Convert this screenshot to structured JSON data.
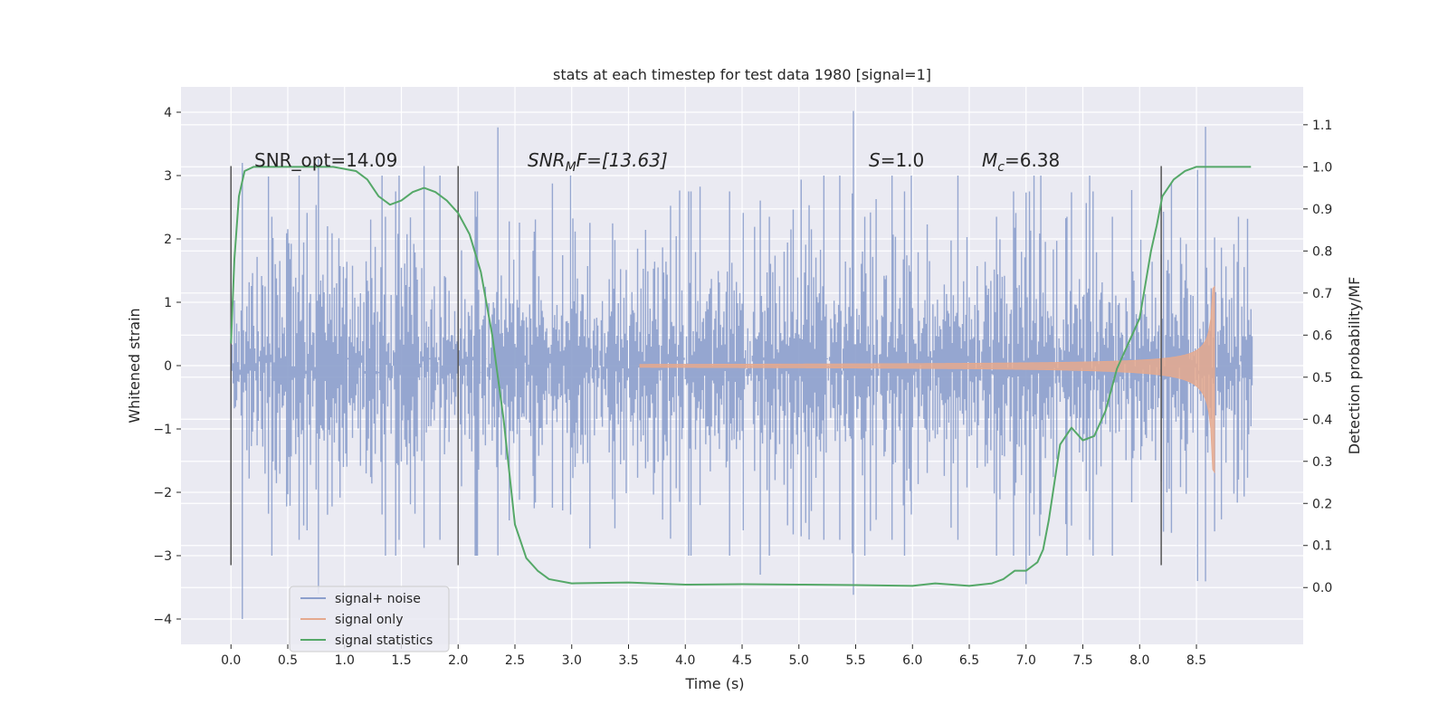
{
  "chart_data": {
    "type": "line",
    "title": "stats at each timestep for test data 1980 [signal=1]",
    "xlabel": "Time (s)",
    "ylabel": "Whitened strain",
    "ylabel_right": "Detection probability/MF",
    "xlim": [
      -0.44,
      9.44
    ],
    "ylim": [
      -4.4,
      4.4
    ],
    "ylim_right": [
      -0.135,
      1.19
    ],
    "x_ticks": [
      0.0,
      0.5,
      1.0,
      1.5,
      2.0,
      2.5,
      3.0,
      3.5,
      4.0,
      4.5,
      5.0,
      5.5,
      6.0,
      6.5,
      7.0,
      7.5,
      8.0,
      8.5
    ],
    "x_tick_labels": [
      "0.0",
      "0.5",
      "1.0",
      "1.5",
      "2.0",
      "2.5",
      "3.0",
      "3.5",
      "4.0",
      "4.5",
      "5.0",
      "5.5",
      "6.0",
      "6.5",
      "7.0",
      "7.5",
      "8.0",
      "8.5"
    ],
    "y_ticks": [
      -4,
      -3,
      -2,
      -1,
      0,
      1,
      2,
      3,
      4
    ],
    "y_tick_labels": [
      "−4",
      "−3",
      "−2",
      "−1",
      "0",
      "1",
      "2",
      "3",
      "4"
    ],
    "y_right_ticks": [
      0.0,
      0.1,
      0.2,
      0.3,
      0.4,
      0.5,
      0.6,
      0.7,
      0.8,
      0.9,
      1.0,
      1.1
    ],
    "y_right_tick_labels": [
      "0.0",
      "0.1",
      "0.2",
      "0.3",
      "0.4",
      "0.5",
      "0.6",
      "0.7",
      "0.8",
      "0.9",
      "1.0",
      "1.1"
    ],
    "grid": true,
    "legend_position": "lower-left",
    "legend": [
      {
        "label": "signal+ noise",
        "color": "#8c9fcc"
      },
      {
        "label": "signal only",
        "color": "#e5a98e"
      },
      {
        "label": "signal statistics",
        "color": "#55a868"
      }
    ],
    "annotations": {
      "snr_opt": "SNR_opt=14.09",
      "snr_mf_main": "SNR",
      "snr_mf_sub": "M",
      "snr_mf_rest": "F=[13.63]",
      "s_main": "S",
      "s_rest": "=1.0",
      "mc_main": "M",
      "mc_sub": "c",
      "mc_rest": "=6.38"
    },
    "vertical_lines_x": [
      0.0,
      2.0,
      8.19
    ],
    "vertical_lines_yrange": [
      -3.15,
      3.15
    ],
    "series": [
      {
        "name": "signal+ noise",
        "color": "#8c9fcc",
        "x_range": [
          0.0,
          8.99
        ],
        "sample_count": 900,
        "noise_seed": 1980,
        "noise_sigma": 1.0,
        "peak_extremes": [
          {
            "x": 0.1,
            "y": -4.0
          },
          {
            "x": 0.77,
            "y": -3.6
          },
          {
            "x": 5.48,
            "y": 4.02
          },
          {
            "x": 4.66,
            "y": -3.3
          },
          {
            "x": 2.35,
            "y": 3.76
          },
          {
            "x": 8.58,
            "y": 3.77
          },
          {
            "x": 8.51,
            "y": -3.4
          },
          {
            "x": 7.0,
            "y": -3.45
          },
          {
            "x": 1.7,
            "y": 3.15
          }
        ]
      },
      {
        "name": "signal only",
        "color": "#e5a98e",
        "description_model": "chirp",
        "x_range": [
          3.6,
          8.66
        ],
        "amplitude_start": 0.02,
        "amplitude_end": 1.25,
        "merger_time": 8.66
      },
      {
        "name": "signal statistics",
        "color": "#55a868",
        "axis": "right",
        "x": [
          0.0,
          0.03,
          0.07,
          0.12,
          0.2,
          0.3,
          0.5,
          0.7,
          0.9,
          1.1,
          1.2,
          1.3,
          1.4,
          1.5,
          1.6,
          1.7,
          1.8,
          1.9,
          2.0,
          2.1,
          2.2,
          2.3,
          2.4,
          2.5,
          2.6,
          2.7,
          2.8,
          3.0,
          3.5,
          4.0,
          4.5,
          5.0,
          5.5,
          6.0,
          6.2,
          6.5,
          6.7,
          6.8,
          6.9,
          7.0,
          7.1,
          7.15,
          7.2,
          7.3,
          7.4,
          7.5,
          7.6,
          7.7,
          7.8,
          7.9,
          8.0,
          8.05,
          8.1,
          8.15,
          8.2,
          8.3,
          8.4,
          8.5,
          8.7,
          8.98
        ],
        "values": [
          0.58,
          0.78,
          0.93,
          0.99,
          1.0,
          1.0,
          1.0,
          1.0,
          1.0,
          0.99,
          0.97,
          0.93,
          0.91,
          0.92,
          0.94,
          0.95,
          0.94,
          0.92,
          0.89,
          0.84,
          0.75,
          0.6,
          0.4,
          0.15,
          0.07,
          0.04,
          0.02,
          0.01,
          0.012,
          0.007,
          0.008,
          0.007,
          0.006,
          0.004,
          0.01,
          0.004,
          0.01,
          0.02,
          0.04,
          0.04,
          0.06,
          0.09,
          0.16,
          0.34,
          0.38,
          0.35,
          0.36,
          0.42,
          0.52,
          0.58,
          0.64,
          0.72,
          0.8,
          0.86,
          0.93,
          0.97,
          0.99,
          1.0,
          1.0,
          1.0
        ]
      }
    ]
  }
}
